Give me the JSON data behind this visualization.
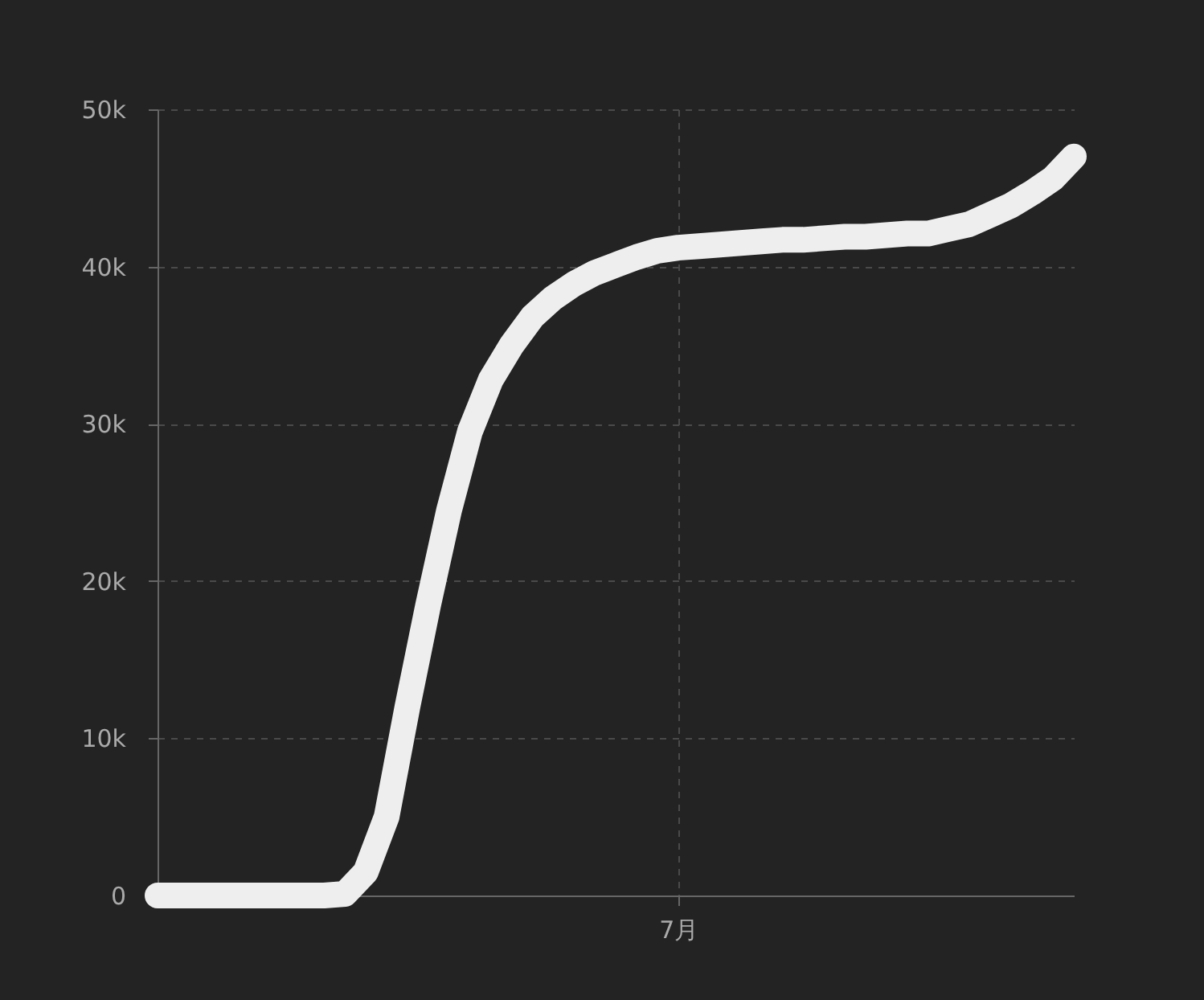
{
  "chart_data": {
    "type": "line",
    "categories": [
      null,
      null,
      null,
      null,
      null,
      null,
      null,
      null,
      null,
      null,
      null,
      null,
      null,
      null,
      null,
      null,
      null,
      null,
      null,
      null,
      null,
      null,
      null,
      null,
      null,
      "7月",
      null,
      null,
      null,
      null,
      null,
      null,
      null,
      null,
      null,
      null,
      null,
      null,
      null,
      null,
      null,
      null,
      null,
      null,
      null
    ],
    "series": [
      {
        "color": "#eeeeee",
        "values": [
          0,
          0,
          0,
          0,
          0,
          0,
          0,
          0,
          0,
          100,
          1500,
          5000,
          12000,
          18500,
          24500,
          29500,
          32800,
          35000,
          36800,
          38000,
          38900,
          39600,
          40100,
          40600,
          41000,
          41200,
          41300,
          41400,
          41500,
          41600,
          41700,
          41700,
          41800,
          41900,
          41900,
          42000,
          42100,
          42100,
          42400,
          42700,
          43300,
          43900,
          44700,
          45600,
          47000
        ]
      }
    ],
    "ylim": [
      0,
      50000
    ],
    "yticks": [
      0,
      {
        "value": 10000,
        "label": "10k"
      },
      {
        "value": 20000,
        "label": "20k"
      },
      {
        "value": 30000,
        "label": "30k"
      },
      {
        "value": 40000,
        "label": "40k"
      },
      {
        "value": 50000,
        "label": "50k"
      }
    ],
    "grid": true,
    "line_style": "solid"
  }
}
